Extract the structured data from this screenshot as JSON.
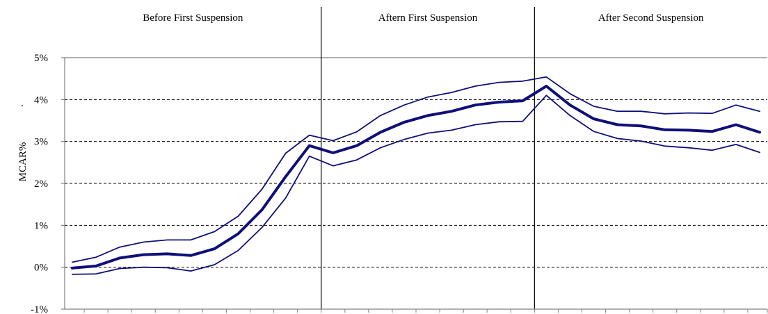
{
  "chart_data": {
    "type": "line",
    "title": "",
    "xlabel": "",
    "ylabel": "MCAR%",
    "ylabel_mark": ".",
    "ylim": [
      -1,
      5
    ],
    "yticks": [
      5,
      4,
      3,
      2,
      1,
      0,
      -1
    ],
    "ytick_labels": [
      "5%",
      "4%",
      "3%",
      "2%",
      "1%",
      "0%",
      "-1%"
    ],
    "grid": "horizontal-dashed",
    "legend": "none",
    "sections": [
      {
        "label": "Before First Suspension",
        "start": 1,
        "end": 11
      },
      {
        "label": "Aftern First Suspension",
        "start": 11,
        "end": 20
      },
      {
        "label": "After Second Suspension",
        "start": 20,
        "end": 30
      }
    ],
    "x": [
      1,
      2,
      3,
      4,
      5,
      6,
      7,
      8,
      9,
      10,
      11,
      12,
      13,
      14,
      15,
      16,
      17,
      18,
      19,
      20,
      21,
      22,
      23,
      24,
      25,
      26,
      27,
      28,
      29,
      30
    ],
    "series": [
      {
        "role": "upper",
        "values": [
          0.12,
          0.24,
          0.48,
          0.6,
          0.65,
          0.65,
          0.85,
          1.22,
          1.86,
          2.72,
          3.15,
          3.02,
          3.23,
          3.62,
          3.87,
          4.06,
          4.17,
          4.32,
          4.41,
          4.44,
          4.54,
          4.14,
          3.84,
          3.72,
          3.72,
          3.66,
          3.68,
          3.67,
          3.87,
          3.72
        ]
      },
      {
        "role": "mean",
        "values": [
          -0.02,
          0.03,
          0.22,
          0.3,
          0.32,
          0.28,
          0.44,
          0.8,
          1.37,
          2.16,
          2.9,
          2.73,
          2.9,
          3.22,
          3.46,
          3.62,
          3.72,
          3.87,
          3.94,
          3.97,
          4.32,
          3.87,
          3.54,
          3.4,
          3.37,
          3.28,
          3.27,
          3.24,
          3.4,
          3.22
        ]
      },
      {
        "role": "lower",
        "values": [
          -0.17,
          -0.16,
          -0.03,
          0.0,
          -0.01,
          -0.09,
          0.06,
          0.4,
          0.95,
          1.65,
          2.65,
          2.42,
          2.56,
          2.85,
          3.05,
          3.2,
          3.27,
          3.4,
          3.47,
          3.48,
          4.1,
          3.62,
          3.24,
          3.07,
          3.01,
          2.89,
          2.85,
          2.79,
          2.93,
          2.74
        ]
      }
    ],
    "colors": {
      "line": "#0f0f7a",
      "grid": "#000000",
      "axis": "#808080",
      "divider": "#000000"
    }
  }
}
